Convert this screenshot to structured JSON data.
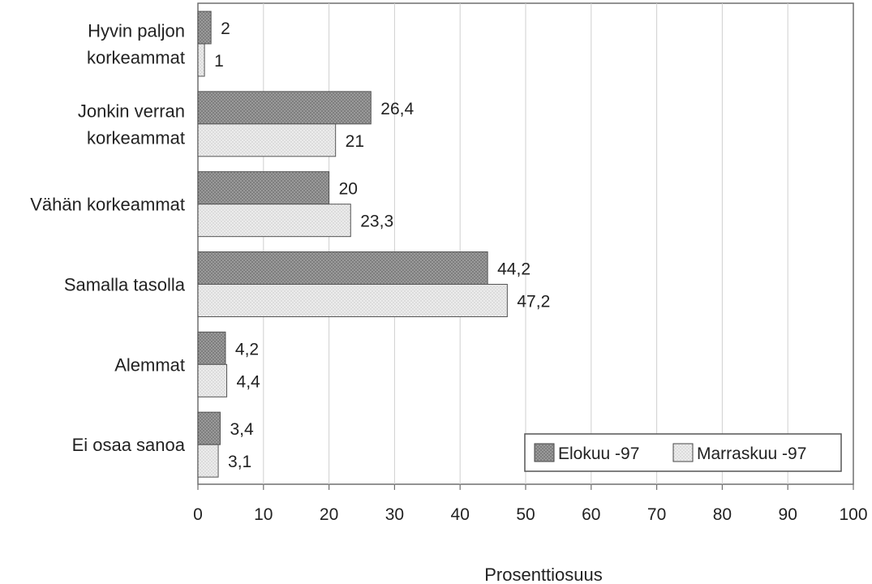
{
  "chart_data": {
    "type": "bar",
    "orientation": "horizontal",
    "title": "",
    "xlabel": "Prosenttiosuus",
    "ylabel": "",
    "xlim": [
      0,
      100
    ],
    "x_ticks": [
      0,
      10,
      20,
      30,
      40,
      50,
      60,
      70,
      80,
      90,
      100
    ],
    "grid": "vertical",
    "legend_position": "bottom-right",
    "categories": [
      [
        "Hyvin paljon",
        "korkeammat"
      ],
      [
        "Jonkin verran",
        "korkeammat"
      ],
      [
        "Vähän korkeammat"
      ],
      [
        "Samalla tasolla"
      ],
      [
        "Alemmat"
      ],
      [
        "Ei osaa sanoa"
      ]
    ],
    "series": [
      {
        "name": "Elokuu -97",
        "values": [
          2,
          26.4,
          20,
          44.2,
          4.2,
          3.4
        ],
        "labels": [
          "2",
          "26,4",
          "20",
          "44,2",
          "4,2",
          "3,4"
        ],
        "color": "#8a8a8a"
      },
      {
        "name": "Marraskuu -97",
        "values": [
          1,
          21,
          23.3,
          47.2,
          4.4,
          3.1
        ],
        "labels": [
          "1",
          "21",
          "23,3",
          "47,2",
          "4,4",
          "3,1"
        ],
        "color": "#e3e3e3"
      }
    ]
  }
}
